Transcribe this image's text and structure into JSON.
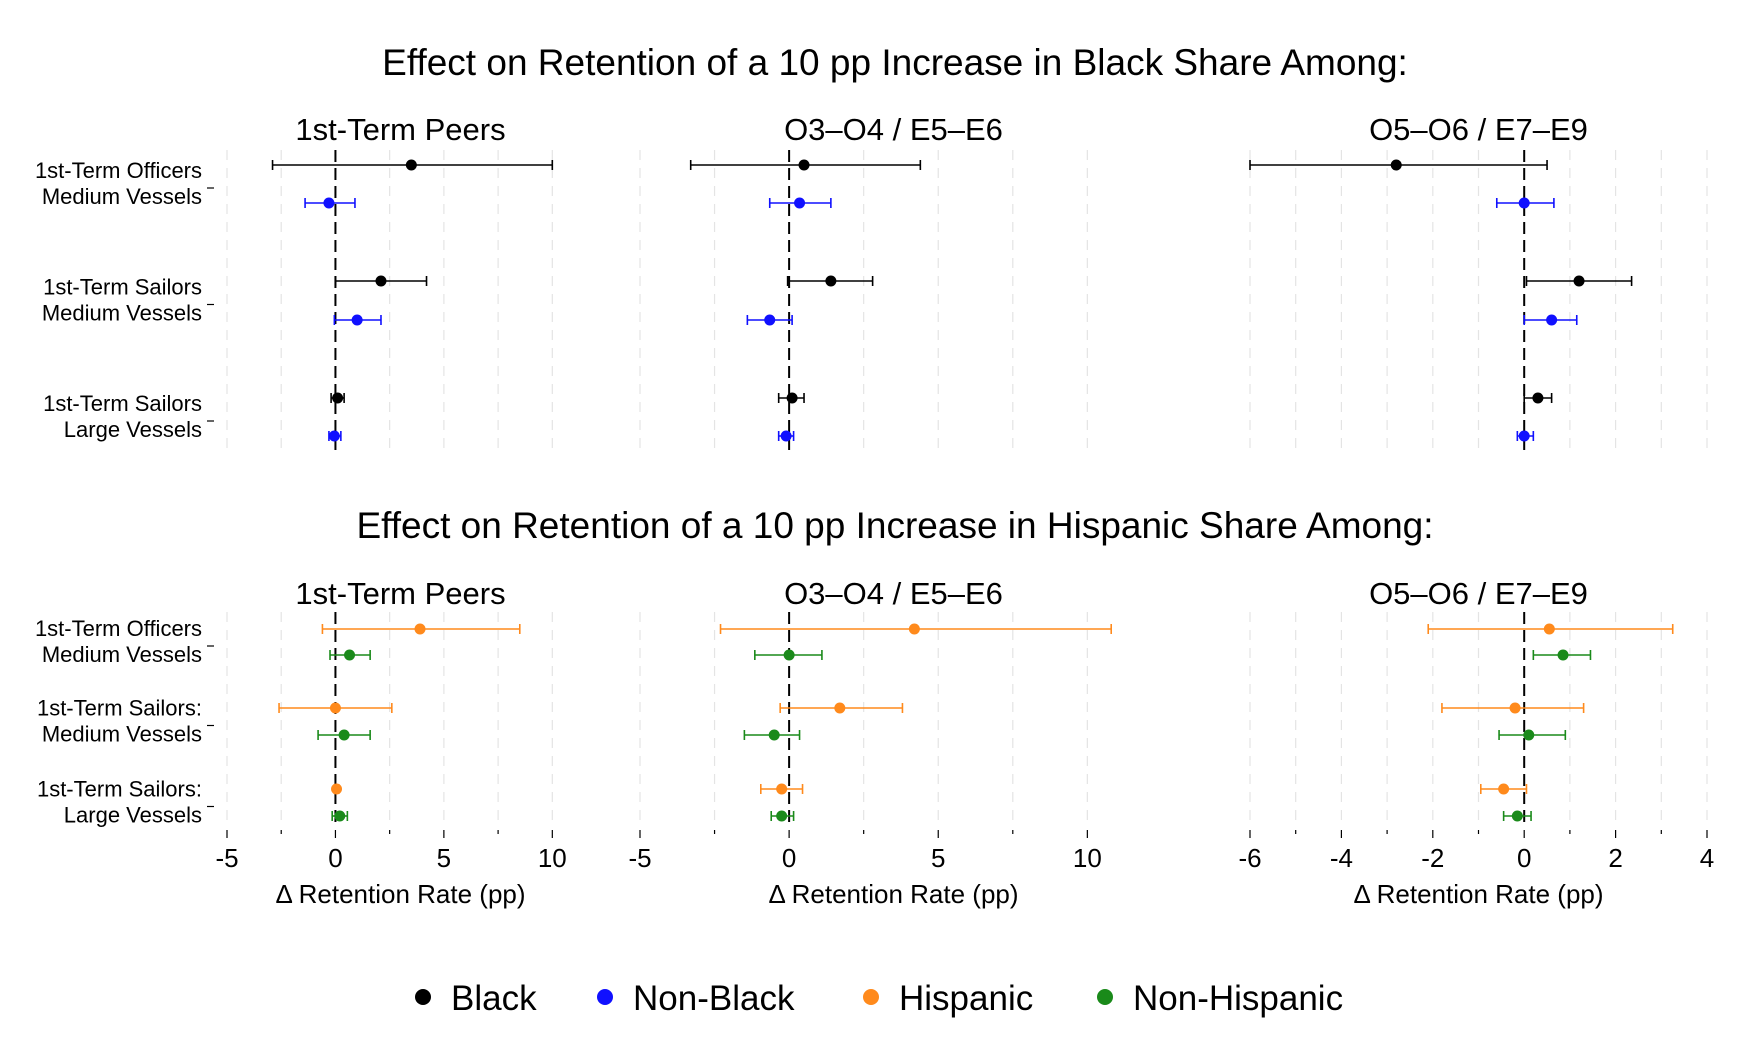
{
  "figure": {
    "colors": {
      "Black": "#000000",
      "Non-Black": "#1010ff",
      "Hispanic": "#ff8a1c",
      "Non-Hispanic": "#1a8a1a",
      "grid": "#e4e4e4"
    },
    "legend": [
      "Black",
      "Non-Black",
      "Hispanic",
      "Non-Hispanic"
    ]
  },
  "chart_data": [
    {
      "type": "scatter",
      "subtype": "coefficient-plot",
      "row_title": "Effect on Retention of a 10 pp Increase in Black Share Among:",
      "title": "1st-Term Peers",
      "xlabel": "",
      "xlim": [
        -5,
        11
      ],
      "xticks": [],
      "categories": [
        [
          "1st-Term Officers",
          "Medium Vessels"
        ],
        [
          "1st-Term Sailors",
          "Medium Vessels"
        ],
        [
          "1st-Term Sailors",
          "Large Vessels"
        ]
      ],
      "series": [
        {
          "name": "Black",
          "estimate": [
            3.5,
            2.1,
            0.1
          ],
          "ci_low": [
            -2.9,
            0.0,
            -0.2
          ],
          "ci_high": [
            10.0,
            4.2,
            0.4
          ]
        },
        {
          "name": "Non-Black",
          "estimate": [
            -0.3,
            1.0,
            -0.05
          ],
          "ci_low": [
            -1.4,
            -0.05,
            -0.3
          ],
          "ci_high": [
            0.9,
            2.1,
            0.25
          ]
        }
      ]
    },
    {
      "type": "scatter",
      "subtype": "coefficient-plot",
      "title": "O3–O4 / E5–E6",
      "xlabel": "",
      "xlim": [
        -5,
        12
      ],
      "xticks": [],
      "categories": [
        [
          "1st-Term Officers",
          "Medium Vessels"
        ],
        [
          "1st-Term Sailors",
          "Medium Vessels"
        ],
        [
          "1st-Term Sailors",
          "Large Vessels"
        ]
      ],
      "series": [
        {
          "name": "Black",
          "estimate": [
            0.5,
            1.4,
            0.1
          ],
          "ci_low": [
            -3.3,
            -0.05,
            -0.35
          ],
          "ci_high": [
            4.4,
            2.8,
            0.5
          ]
        },
        {
          "name": "Non-Black",
          "estimate": [
            0.35,
            -0.65,
            -0.1
          ],
          "ci_low": [
            -0.65,
            -1.4,
            -0.35
          ],
          "ci_high": [
            1.4,
            0.1,
            0.15
          ]
        }
      ]
    },
    {
      "type": "scatter",
      "subtype": "coefficient-plot",
      "title": "O5–O6 / E7–E9",
      "xlabel": "",
      "xlim": [
        -6,
        4
      ],
      "xticks": [],
      "categories": [
        [
          "1st-Term Officers",
          "Medium Vessels"
        ],
        [
          "1st-Term Sailors",
          "Medium Vessels"
        ],
        [
          "1st-Term Sailors",
          "Large Vessels"
        ]
      ],
      "series": [
        {
          "name": "Black",
          "estimate": [
            -2.8,
            1.2,
            0.3
          ],
          "ci_low": [
            -6.0,
            0.05,
            0.0
          ],
          "ci_high": [
            0.5,
            2.35,
            0.6
          ]
        },
        {
          "name": "Non-Black",
          "estimate": [
            0.0,
            0.6,
            0.0
          ],
          "ci_low": [
            -0.6,
            0.0,
            -0.15
          ],
          "ci_high": [
            0.65,
            1.15,
            0.2
          ]
        }
      ]
    },
    {
      "type": "scatter",
      "subtype": "coefficient-plot",
      "row_title": "Effect on Retention of a 10 pp Increase in Hispanic Share Among:",
      "title": "1st-Term Peers",
      "xlabel": "Δ Retention Rate (pp)",
      "xlim": [
        -5,
        11
      ],
      "xticks": [
        -5,
        0,
        5,
        10
      ],
      "categories": [
        [
          "1st-Term Officers",
          "Medium Vessels"
        ],
        [
          "1st-Term Sailors:",
          "Medium Vessels"
        ],
        [
          "1st-Term Sailors:",
          "Large Vessels"
        ]
      ],
      "series": [
        {
          "name": "Hispanic",
          "estimate": [
            3.9,
            0.0,
            0.05
          ],
          "ci_low": [
            -0.6,
            -2.6,
            -0.05
          ],
          "ci_high": [
            8.5,
            2.6,
            0.15
          ]
        },
        {
          "name": "Non-Hispanic",
          "estimate": [
            0.65,
            0.4,
            0.2
          ],
          "ci_low": [
            -0.25,
            -0.8,
            -0.15
          ],
          "ci_high": [
            1.6,
            1.6,
            0.55
          ]
        }
      ]
    },
    {
      "type": "scatter",
      "subtype": "coefficient-plot",
      "title": "O3–O4 / E5–E6",
      "xlabel": "Δ Retention Rate (pp)",
      "xlim": [
        -5,
        12
      ],
      "xticks": [
        -5,
        0,
        5,
        10
      ],
      "categories": [
        [
          "1st-Term Officers",
          "Medium Vessels"
        ],
        [
          "1st-Term Sailors:",
          "Medium Vessels"
        ],
        [
          "1st-Term Sailors:",
          "Large Vessels"
        ]
      ],
      "series": [
        {
          "name": "Hispanic",
          "estimate": [
            4.2,
            1.7,
            -0.25
          ],
          "ci_low": [
            -2.3,
            -0.3,
            -0.95
          ],
          "ci_high": [
            10.8,
            3.8,
            0.45
          ]
        },
        {
          "name": "Non-Hispanic",
          "estimate": [
            0.0,
            -0.5,
            -0.25
          ],
          "ci_low": [
            -1.15,
            -1.5,
            -0.6
          ],
          "ci_high": [
            1.1,
            0.35,
            0.15
          ]
        }
      ]
    },
    {
      "type": "scatter",
      "subtype": "coefficient-plot",
      "title": "O5–O6 / E7–E9",
      "xlabel": "Δ Retention Rate (pp)",
      "xlim": [
        -6,
        4
      ],
      "xticks": [
        -6,
        -4,
        -2,
        0,
        2,
        4
      ],
      "categories": [
        [
          "1st-Term Officers",
          "Medium Vessels"
        ],
        [
          "1st-Term Sailors:",
          "Medium Vessels"
        ],
        [
          "1st-Term Sailors:",
          "Large Vessels"
        ]
      ],
      "series": [
        {
          "name": "Hispanic",
          "estimate": [
            0.55,
            -0.2,
            -0.45
          ],
          "ci_low": [
            -2.1,
            -1.8,
            -0.95
          ],
          "ci_high": [
            3.25,
            1.3,
            0.05
          ]
        },
        {
          "name": "Non-Hispanic",
          "estimate": [
            0.85,
            0.1,
            -0.15
          ],
          "ci_low": [
            0.2,
            -0.55,
            -0.45
          ],
          "ci_high": [
            1.45,
            0.9,
            0.15
          ]
        }
      ]
    }
  ]
}
